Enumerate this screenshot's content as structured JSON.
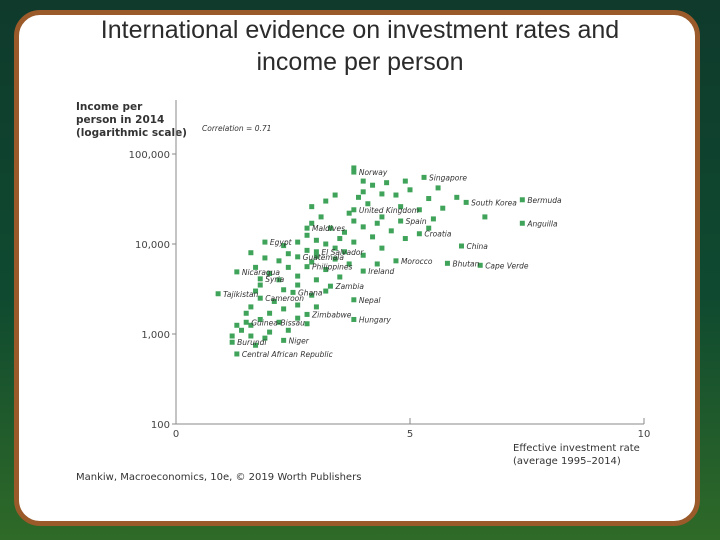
{
  "slide": {
    "title_line1": "International evidence on investment rates and",
    "title_line2": "income per person",
    "credit": "Mankiw, Macroeconomics, 10e, © 2019 Worth Publishers"
  },
  "colors": {
    "frame": "#9a5a2a",
    "point": "#3fa35a",
    "axis": "#888888"
  },
  "chart_data": {
    "type": "scatter",
    "title": "",
    "ylabel_lines": [
      "Income per",
      "person in 2014",
      "(logarithmic scale)"
    ],
    "xlabel_lines": [
      "Effective investment rate",
      "(average 1995–2014)"
    ],
    "annotation": "Correlation = 0.71",
    "xlim": [
      0,
      10
    ],
    "ylim": [
      100,
      100000
    ],
    "yscale": "log",
    "x_ticks": [
      {
        "v": 0,
        "label": "0"
      },
      {
        "v": 5,
        "label": "5"
      },
      {
        "v": 10,
        "label": "10"
      }
    ],
    "y_ticks": [
      {
        "v": 100,
        "label": "100"
      },
      {
        "v": 1000,
        "label": "1,000"
      },
      {
        "v": 10000,
        "label": "10,000"
      },
      {
        "v": 100000,
        "label": "100,000"
      }
    ],
    "labeled_points": [
      {
        "name": "Norway",
        "x": 3.8,
        "y": 63000
      },
      {
        "name": "Singapore",
        "x": 5.3,
        "y": 55000
      },
      {
        "name": "South Korea",
        "x": 6.2,
        "y": 29000
      },
      {
        "name": "Bermuda",
        "x": 7.4,
        "y": 31000
      },
      {
        "name": "United Kingdom",
        "x": 3.8,
        "y": 24000
      },
      {
        "name": "Spain",
        "x": 4.8,
        "y": 18000
      },
      {
        "name": "Anguilla",
        "x": 7.4,
        "y": 17000
      },
      {
        "name": "Maldives",
        "x": 2.8,
        "y": 15000
      },
      {
        "name": "Croatia",
        "x": 5.2,
        "y": 13000
      },
      {
        "name": "Egypt",
        "x": 1.9,
        "y": 10500
      },
      {
        "name": "China",
        "x": 6.1,
        "y": 9500
      },
      {
        "name": "El Salvador",
        "x": 3.0,
        "y": 8200
      },
      {
        "name": "Guatemala",
        "x": 2.6,
        "y": 7200
      },
      {
        "name": "Morocco",
        "x": 4.7,
        "y": 6500
      },
      {
        "name": "Bhutan",
        "x": 5.8,
        "y": 6100
      },
      {
        "name": "Cape Verde",
        "x": 6.5,
        "y": 5800
      },
      {
        "name": "Philippines",
        "x": 2.8,
        "y": 5600
      },
      {
        "name": "Nicaragua",
        "x": 1.3,
        "y": 4900
      },
      {
        "name": "Ireland",
        "x": 4.0,
        "y": 5000
      },
      {
        "name": "Syria",
        "x": 1.8,
        "y": 4100
      },
      {
        "name": "Zambia",
        "x": 3.3,
        "y": 3400
      },
      {
        "name": "Tajikistan",
        "x": 0.9,
        "y": 2800
      },
      {
        "name": "Ghana",
        "x": 2.5,
        "y": 2900
      },
      {
        "name": "Cameroon",
        "x": 1.8,
        "y": 2500
      },
      {
        "name": "Nepal",
        "x": 3.8,
        "y": 2400
      },
      {
        "name": "Zimbabwe",
        "x": 2.8,
        "y": 1650
      },
      {
        "name": "Hungary",
        "x": 3.8,
        "y": 1450
      },
      {
        "name": "Guinea-Bissau",
        "x": 1.5,
        "y": 1350
      },
      {
        "name": "Niger",
        "x": 2.3,
        "y": 850
      },
      {
        "name": "Burundi",
        "x": 1.2,
        "y": 810
      },
      {
        "name": "Central African Republic",
        "x": 1.3,
        "y": 600
      }
    ],
    "points": [
      {
        "x": 3.8,
        "y": 70000
      },
      {
        "x": 4.0,
        "y": 50000
      },
      {
        "x": 4.2,
        "y": 45000
      },
      {
        "x": 4.5,
        "y": 48000
      },
      {
        "x": 4.9,
        "y": 50000
      },
      {
        "x": 5.6,
        "y": 42000
      },
      {
        "x": 4.0,
        "y": 38000
      },
      {
        "x": 4.4,
        "y": 36000
      },
      {
        "x": 3.4,
        "y": 35000
      },
      {
        "x": 3.9,
        "y": 33000
      },
      {
        "x": 4.7,
        "y": 35000
      },
      {
        "x": 5.0,
        "y": 40000
      },
      {
        "x": 5.4,
        "y": 32000
      },
      {
        "x": 6.0,
        "y": 33000
      },
      {
        "x": 3.2,
        "y": 30000
      },
      {
        "x": 4.1,
        "y": 28000
      },
      {
        "x": 4.8,
        "y": 26000
      },
      {
        "x": 5.2,
        "y": 24000
      },
      {
        "x": 5.7,
        "y": 25000
      },
      {
        "x": 2.9,
        "y": 26000
      },
      {
        "x": 3.7,
        "y": 22000
      },
      {
        "x": 4.4,
        "y": 20000
      },
      {
        "x": 5.5,
        "y": 19000
      },
      {
        "x": 6.6,
        "y": 20000
      },
      {
        "x": 3.1,
        "y": 20000
      },
      {
        "x": 3.8,
        "y": 18000
      },
      {
        "x": 4.3,
        "y": 17000
      },
      {
        "x": 2.9,
        "y": 17000
      },
      {
        "x": 3.3,
        "y": 15000
      },
      {
        "x": 4.0,
        "y": 15500
      },
      {
        "x": 4.6,
        "y": 14000
      },
      {
        "x": 5.4,
        "y": 15000
      },
      {
        "x": 3.6,
        "y": 13500
      },
      {
        "x": 4.9,
        "y": 11500
      },
      {
        "x": 2.8,
        "y": 12500
      },
      {
        "x": 3.0,
        "y": 11000
      },
      {
        "x": 3.5,
        "y": 11500
      },
      {
        "x": 4.2,
        "y": 12000
      },
      {
        "x": 3.2,
        "y": 10000
      },
      {
        "x": 3.8,
        "y": 10500
      },
      {
        "x": 2.6,
        "y": 10500
      },
      {
        "x": 2.3,
        "y": 9600
      },
      {
        "x": 3.4,
        "y": 9000
      },
      {
        "x": 4.4,
        "y": 9000
      },
      {
        "x": 2.8,
        "y": 8500
      },
      {
        "x": 3.6,
        "y": 8200
      },
      {
        "x": 4.0,
        "y": 7500
      },
      {
        "x": 3.0,
        "y": 7300
      },
      {
        "x": 2.4,
        "y": 7800
      },
      {
        "x": 1.6,
        "y": 8000
      },
      {
        "x": 1.9,
        "y": 7000
      },
      {
        "x": 3.4,
        "y": 6800
      },
      {
        "x": 2.2,
        "y": 6500
      },
      {
        "x": 2.9,
        "y": 6300
      },
      {
        "x": 3.7,
        "y": 6000
      },
      {
        "x": 4.3,
        "y": 6000
      },
      {
        "x": 2.4,
        "y": 5500
      },
      {
        "x": 1.7,
        "y": 5500
      },
      {
        "x": 3.2,
        "y": 5200
      },
      {
        "x": 2.0,
        "y": 4700
      },
      {
        "x": 2.6,
        "y": 4400
      },
      {
        "x": 3.5,
        "y": 4300
      },
      {
        "x": 2.2,
        "y": 4000
      },
      {
        "x": 3.0,
        "y": 4000
      },
      {
        "x": 1.8,
        "y": 3500
      },
      {
        "x": 2.6,
        "y": 3500
      },
      {
        "x": 3.2,
        "y": 3000
      },
      {
        "x": 2.3,
        "y": 3100
      },
      {
        "x": 1.7,
        "y": 3000
      },
      {
        "x": 2.9,
        "y": 2700
      },
      {
        "x": 2.1,
        "y": 2300
      },
      {
        "x": 2.6,
        "y": 2100
      },
      {
        "x": 3.0,
        "y": 2000
      },
      {
        "x": 1.6,
        "y": 2000
      },
      {
        "x": 2.3,
        "y": 1900
      },
      {
        "x": 2.0,
        "y": 1700
      },
      {
        "x": 1.5,
        "y": 1700
      },
      {
        "x": 2.6,
        "y": 1500
      },
      {
        "x": 1.8,
        "y": 1450
      },
      {
        "x": 2.2,
        "y": 1350
      },
      {
        "x": 1.6,
        "y": 1250
      },
      {
        "x": 2.8,
        "y": 1300
      },
      {
        "x": 1.4,
        "y": 1100
      },
      {
        "x": 2.0,
        "y": 1050
      },
      {
        "x": 1.3,
        "y": 1250
      },
      {
        "x": 2.4,
        "y": 1100
      },
      {
        "x": 1.9,
        "y": 900
      },
      {
        "x": 1.6,
        "y": 950
      },
      {
        "x": 1.2,
        "y": 950
      },
      {
        "x": 1.7,
        "y": 750
      }
    ]
  }
}
